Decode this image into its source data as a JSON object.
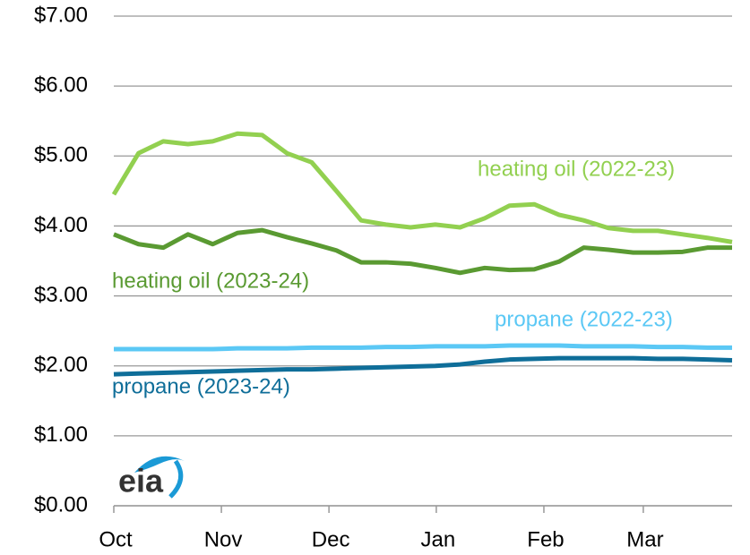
{
  "chart_data": {
    "type": "line",
    "logo": "eia",
    "x": [
      0,
      1,
      2,
      3,
      4,
      5,
      6,
      7,
      8,
      9,
      10,
      11,
      12,
      13,
      14,
      15,
      16,
      17,
      18,
      19,
      20,
      21,
      22,
      23,
      24,
      25
    ],
    "xlim": [
      0,
      25
    ],
    "xticks": [
      {
        "value": 0,
        "label": "Oct"
      },
      {
        "value": 4.35,
        "label": "Nov"
      },
      {
        "value": 8.7,
        "label": "Dec"
      },
      {
        "value": 13.04,
        "label": "Jan"
      },
      {
        "value": 17.39,
        "label": "Feb"
      },
      {
        "value": 21.41,
        "label": "Mar"
      }
    ],
    "ylim": [
      0,
      7
    ],
    "yticks": [
      {
        "value": 0,
        "label": "$0.00"
      },
      {
        "value": 1,
        "label": "$1.00"
      },
      {
        "value": 2,
        "label": "$2.00"
      },
      {
        "value": 3,
        "label": "$3.00"
      },
      {
        "value": 4,
        "label": "$4.00"
      },
      {
        "value": 5,
        "label": "$5.00"
      },
      {
        "value": 6,
        "label": "$6.00"
      },
      {
        "value": 7,
        "label": "$7.00"
      }
    ],
    "grid": true,
    "series": [
      {
        "name": "heating oil (2022-23)",
        "color": "#92d050",
        "values": [
          4.45,
          5.04,
          5.21,
          5.17,
          5.21,
          5.32,
          5.3,
          5.04,
          4.91,
          4.5,
          4.08,
          4.02,
          3.98,
          4.02,
          3.98,
          4.11,
          4.29,
          4.31,
          4.16,
          4.08,
          3.97,
          3.93,
          3.93,
          3.88,
          3.83,
          3.77
        ]
      },
      {
        "name": "heating oil (2023-24)",
        "color": "#5a9a32",
        "values": [
          3.88,
          3.74,
          3.69,
          3.88,
          3.74,
          3.9,
          3.94,
          3.84,
          3.75,
          3.65,
          3.48,
          3.48,
          3.46,
          3.4,
          3.33,
          3.4,
          3.37,
          3.38,
          3.49,
          3.69,
          3.66,
          3.62,
          3.62,
          3.63,
          3.69,
          3.69
        ]
      },
      {
        "name": "propane (2022-23)",
        "color": "#5bc8f5",
        "values": [
          2.24,
          2.24,
          2.24,
          2.24,
          2.24,
          2.25,
          2.25,
          2.25,
          2.26,
          2.26,
          2.26,
          2.27,
          2.27,
          2.28,
          2.28,
          2.28,
          2.29,
          2.29,
          2.29,
          2.28,
          2.28,
          2.28,
          2.27,
          2.27,
          2.26,
          2.26
        ]
      },
      {
        "name": "propane (2023-24)",
        "color": "#0f6e99",
        "values": [
          1.88,
          1.89,
          1.9,
          1.91,
          1.92,
          1.93,
          1.94,
          1.95,
          1.95,
          1.96,
          1.97,
          1.98,
          1.99,
          2.0,
          2.02,
          2.06,
          2.09,
          2.1,
          2.11,
          2.11,
          2.11,
          2.11,
          2.1,
          2.1,
          2.09,
          2.08
        ]
      }
    ]
  }
}
